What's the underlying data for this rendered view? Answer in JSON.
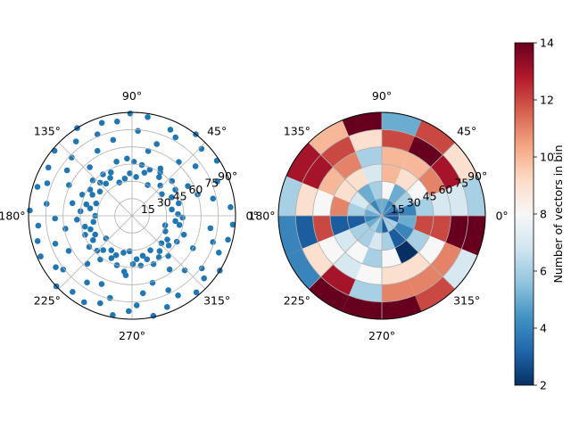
{
  "chart_data": [
    {
      "type": "scatter",
      "projection": "polar",
      "marker_color": "#1f77b4",
      "grid": true,
      "theta_tick_labels": [
        "0°",
        "45°",
        "90°",
        "135°",
        "180°",
        "225°",
        "270°",
        "315°"
      ],
      "r_tick_labels": [
        "15",
        "30",
        "45",
        "60",
        "75",
        "90"
      ],
      "r_tick_label_suffix": "°",
      "rlim": [
        0,
        90
      ],
      "points_theta_deg": [
        5,
        12,
        18,
        22,
        28,
        33,
        38,
        44,
        49,
        52,
        57,
        61,
        66,
        71,
        76,
        81,
        86,
        91,
        95,
        99,
        104,
        108,
        113,
        118,
        122,
        127,
        131,
        136,
        140,
        145,
        150,
        154,
        159,
        163,
        168,
        172,
        177,
        182,
        186,
        191,
        195,
        200,
        204,
        209,
        214,
        218,
        223,
        227,
        232,
        236,
        241,
        246,
        250,
        255,
        259,
        264,
        268,
        273,
        278,
        282,
        287,
        291,
        296,
        300,
        305,
        310,
        314,
        319,
        323,
        328,
        332,
        337,
        342,
        346,
        351,
        355,
        2,
        9,
        15,
        25,
        31,
        36,
        41,
        47,
        55,
        59,
        63,
        69,
        74,
        79,
        84,
        88,
        93,
        101,
        106,
        111,
        116,
        120,
        125,
        129,
        134,
        138,
        143,
        148,
        152,
        157,
        161,
        166,
        170,
        175,
        180,
        184,
        189,
        193,
        198,
        202,
        207,
        212,
        216,
        221,
        225,
        230,
        234,
        239,
        244,
        248,
        253,
        257,
        262,
        266,
        271,
        276,
        280,
        285,
        289,
        294,
        298,
        303,
        308,
        312,
        317,
        321,
        326,
        330,
        335,
        340,
        344,
        349,
        353,
        358
      ],
      "points_r_deg": [
        86,
        72,
        60,
        80,
        55,
        88,
        70,
        84,
        62,
        90,
        45,
        78,
        82,
        66,
        58,
        87,
        74,
        89,
        50,
        83,
        68,
        85,
        77,
        64,
        90,
        81,
        56,
        73,
        88,
        69,
        84,
        61,
        79,
        86,
        53,
        75,
        89,
        67,
        82,
        59,
        85,
        71,
        87,
        63,
        80,
        76,
        90,
        57,
        84,
        70,
        86,
        65,
        81,
        74,
        88,
        52,
        83,
        78,
        68,
        89,
        61,
        85,
        72,
        80,
        57,
        87,
        66,
        83,
        76,
        90,
        60,
        82,
        74,
        86,
        69,
        88,
        40,
        35,
        42,
        38,
        44,
        32,
        46,
        36,
        41,
        48,
        30,
        43,
        39,
        45,
        34,
        47,
        37,
        33,
        49,
        31,
        42,
        38,
        44,
        36,
        40,
        46,
        35,
        43,
        39,
        47,
        33,
        41,
        37,
        45,
        32,
        48,
        34,
        42,
        38,
        44,
        36,
        40,
        46,
        30,
        43,
        39,
        47,
        35,
        41,
        37,
        45,
        33,
        49,
        31,
        42,
        38,
        44,
        36,
        40,
        46,
        34,
        43,
        39,
        47,
        35,
        41,
        37,
        45,
        32,
        48,
        30,
        42,
        38,
        44,
        36,
        40
      ]
    },
    {
      "type": "heatmap",
      "projection": "polar",
      "grid": true,
      "theta_tick_labels": [
        "0°",
        "45°",
        "90°",
        "135°",
        "180°",
        "225°",
        "270°",
        "315°"
      ],
      "r_tick_labels": [
        "15",
        "30",
        "45",
        "60",
        "75",
        "90"
      ],
      "r_tick_label_suffix": "°",
      "rlim": [
        0,
        90
      ],
      "theta_bins": 16,
      "r_bin_edges": [
        0,
        15,
        30,
        45,
        60,
        75,
        90
      ],
      "counts": [
        [
          3,
          4,
          6,
          7,
          7,
          6
        ],
        [
          4,
          6,
          8,
          11,
          13,
          9
        ],
        [
          4,
          5,
          9,
          10,
          14,
          12
        ],
        [
          5,
          8,
          10,
          10,
          12,
          5
        ],
        [
          5,
          6,
          7,
          6,
          9,
          14
        ],
        [
          4,
          5,
          9,
          11,
          12,
          10
        ],
        [
          6,
          7,
          9,
          10,
          13,
          13
        ],
        [
          5,
          6,
          11,
          8,
          9,
          6
        ],
        [
          4,
          3,
          3,
          12,
          3,
          4
        ],
        [
          5,
          6,
          7,
          8,
          9,
          4
        ],
        [
          6,
          6,
          8,
          7,
          13,
          14
        ],
        [
          5,
          7,
          6,
          8,
          6,
          14
        ],
        [
          3,
          6,
          8,
          9,
          11,
          14
        ],
        [
          6,
          3,
          2,
          9,
          11,
          12
        ],
        [
          6,
          4,
          6,
          8,
          11,
          7
        ],
        [
          3,
          5,
          12,
          12,
          14,
          14
        ]
      ],
      "colorbar": {
        "label": "Number of vectors in bin",
        "ticks": [
          "2",
          "4",
          "6",
          "8",
          "10",
          "12",
          "14"
        ],
        "vmin": 2,
        "vmax": 14,
        "cmap": "RdBu_r"
      }
    }
  ]
}
